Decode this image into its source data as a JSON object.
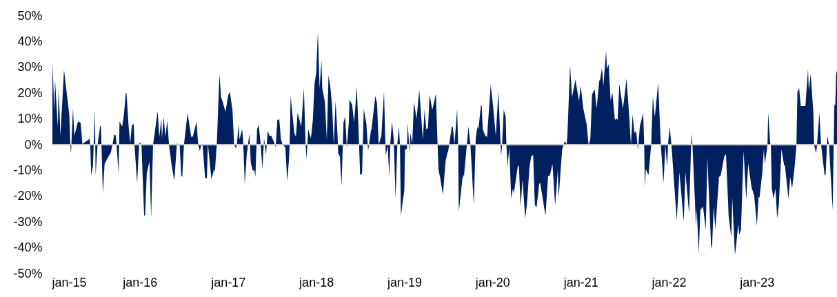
{
  "chart_data": {
    "type": "area",
    "x": [
      "2015-01-04",
      "2015-01-12",
      "2015-01-15",
      "2015-01-26",
      "2015-01-30",
      "2015-02-06",
      "2015-02-21",
      "2015-03-15",
      "2015-03-19",
      "2015-03-22",
      "2015-03-30",
      "2015-04-05",
      "2015-04-20",
      "2015-05-01",
      "2015-05-08",
      "2015-06-03",
      "2015-06-07",
      "2015-06-10",
      "2015-06-14",
      "2015-06-21",
      "2015-06-29",
      "2015-07-02",
      "2015-07-10",
      "2015-07-21",
      "2015-07-24",
      "2015-08-01",
      "2015-08-08",
      "2015-08-19",
      "2015-09-03",
      "2015-09-10",
      "2015-09-17",
      "2015-09-24",
      "2015-10-05",
      "2015-10-09",
      "2015-10-20",
      "2015-10-27",
      "2015-11-04",
      "2015-11-07",
      "2015-11-15",
      "2015-11-22",
      "2015-11-29",
      "2015-12-07",
      "2015-12-10",
      "2015-12-21",
      "2015-12-29",
      "2016-01-01",
      "2016-01-08",
      "2016-01-19",
      "2016-01-23",
      "2016-01-30",
      "2016-02-10",
      "2016-02-17",
      "2016-02-25",
      "2016-03-15",
      "2016-03-22",
      "2016-03-30",
      "2016-04-02",
      "2016-04-09",
      "2016-04-16",
      "2016-04-24",
      "2016-05-01",
      "2016-05-12",
      "2016-05-23",
      "2016-06-03",
      "2016-06-14",
      "2016-06-21",
      "2016-06-25",
      "2016-07-02",
      "2016-07-17",
      "2016-08-01",
      "2016-08-08",
      "2016-08-23",
      "2016-08-30",
      "2016-09-06",
      "2016-09-13",
      "2016-09-17",
      "2016-09-28",
      "2016-10-05",
      "2016-10-09",
      "2016-10-24",
      "2016-11-04",
      "2016-11-07",
      "2016-11-15",
      "2016-11-26",
      "2016-12-03",
      "2016-12-10",
      "2016-12-21",
      "2017-01-01",
      "2017-01-08",
      "2017-01-19",
      "2017-01-26",
      "2017-02-03",
      "2017-02-06",
      "2017-02-14",
      "2017-02-17",
      "2017-02-28",
      "2017-03-04",
      "2017-03-11",
      "2017-03-19",
      "2017-03-30",
      "2017-04-05",
      "2017-04-13",
      "2017-04-20",
      "2017-04-24",
      "2017-05-01",
      "2017-05-08",
      "2017-05-16",
      "2017-05-23",
      "2017-05-30",
      "2017-06-07",
      "2017-06-14",
      "2017-06-21",
      "2017-06-29",
      "2017-07-10",
      "2017-07-17",
      "2017-07-24",
      "2017-08-01",
      "2017-08-08",
      "2017-08-15",
      "2017-08-26",
      "2017-09-03",
      "2017-09-10",
      "2017-09-13",
      "2017-09-17",
      "2017-10-02",
      "2017-10-09",
      "2017-10-16",
      "2017-10-31",
      "2017-11-11",
      "2017-11-18",
      "2017-11-22",
      "2017-11-29",
      "2017-12-10",
      "2017-12-18",
      "2017-12-25",
      "2018-01-01",
      "2018-01-08",
      "2018-01-15",
      "2018-01-23",
      "2018-01-26",
      "2018-02-06",
      "2018-02-14",
      "2018-02-21",
      "2018-02-28",
      "2018-03-08",
      "2018-03-15",
      "2018-03-22",
      "2018-03-30",
      "2018-04-02",
      "2018-04-09",
      "2018-04-16",
      "2018-04-24",
      "2018-05-01",
      "2018-05-08",
      "2018-05-16",
      "2018-05-19",
      "2018-05-30",
      "2018-06-07",
      "2018-06-10",
      "2018-06-18",
      "2018-06-25",
      "2018-07-02",
      "2018-07-10",
      "2018-07-13",
      "2018-07-17",
      "2018-07-28",
      "2018-08-04",
      "2018-08-15",
      "2018-08-19",
      "2018-09-03",
      "2018-09-10",
      "2018-09-17",
      "2018-09-28",
      "2018-10-09",
      "2018-10-16",
      "2018-10-24",
      "2018-10-31",
      "2018-11-04",
      "2018-11-11",
      "2018-11-18",
      "2018-11-26",
      "2018-12-03",
      "2018-12-10",
      "2018-12-14",
      "2018-12-18",
      "2018-12-25",
      "2019-01-01",
      "2019-01-04",
      "2019-01-12",
      "2019-01-15",
      "2019-01-23",
      "2019-01-26",
      "2019-02-03",
      "2019-02-10",
      "2019-02-21",
      "2019-03-04",
      "2019-03-19",
      "2019-03-26",
      "2019-04-02",
      "2019-04-09",
      "2019-04-16",
      "2019-04-27",
      "2019-05-12",
      "2019-05-19",
      "2019-05-23",
      "2019-05-30",
      "2019-06-10",
      "2019-06-21",
      "2019-06-29",
      "2019-07-02",
      "2019-07-17",
      "2019-07-21",
      "2019-07-28",
      "2019-08-08",
      "2019-08-12",
      "2019-08-15",
      "2019-08-30",
      "2019-09-06",
      "2019-09-24",
      "2019-10-02",
      "2019-10-16",
      "2019-10-24",
      "2019-10-31",
      "2019-11-04",
      "2019-11-15",
      "2019-11-18",
      "2019-11-22",
      "2019-12-03",
      "2019-12-10",
      "2019-12-25",
      "2020-01-04",
      "2020-01-15",
      "2020-01-26",
      "2020-02-06",
      "2020-02-10",
      "2020-02-17",
      "2020-02-25",
      "2020-02-28",
      "2020-03-04",
      "2020-03-11",
      "2020-03-19",
      "2020-03-26",
      "2020-03-30",
      "2020-04-16",
      "2020-04-20",
      "2020-04-27",
      "2020-05-05",
      "2020-05-16",
      "2020-05-23",
      "2020-06-03",
      "2020-06-10",
      "2020-06-18",
      "2020-06-25",
      "2020-07-02",
      "2020-07-13",
      "2020-07-17",
      "2020-08-08",
      "2020-08-19",
      "2020-08-26",
      "2020-09-06",
      "2020-09-17",
      "2020-09-28",
      "2020-10-02",
      "2020-10-09",
      "2020-10-16",
      "2020-10-27",
      "2020-11-04",
      "2020-11-07",
      "2020-11-18",
      "2020-11-26",
      "2020-12-10",
      "2020-12-25",
      "2021-01-01",
      "2021-01-12",
      "2021-01-26",
      "2021-02-03",
      "2021-02-10",
      "2021-02-17",
      "2021-02-28",
      "2021-03-08",
      "2021-03-19",
      "2021-03-22",
      "2021-03-30",
      "2021-04-05",
      "2021-04-16",
      "2021-04-20",
      "2021-04-27",
      "2021-05-05",
      "2021-05-12",
      "2021-05-23",
      "2021-05-27",
      "2021-06-03",
      "2021-06-10",
      "2021-06-25",
      "2021-07-10",
      "2021-07-21",
      "2021-07-28",
      "2021-08-04",
      "2021-08-12",
      "2021-08-19",
      "2021-08-26",
      "2021-09-03",
      "2021-09-17",
      "2021-09-21",
      "2021-09-24",
      "2021-09-28",
      "2021-10-09",
      "2021-10-20",
      "2021-10-27",
      "2021-11-04",
      "2021-11-18",
      "2021-11-29",
      "2021-12-10",
      "2021-12-18",
      "2021-12-25",
      "2021-12-29",
      "2022-01-04",
      "2022-01-12",
      "2022-02-03",
      "2022-02-14",
      "2022-03-04",
      "2022-03-11",
      "2022-03-26",
      "2022-04-05",
      "2022-04-09",
      "2022-04-24",
      "2022-04-27",
      "2022-05-05",
      "2022-05-12",
      "2022-05-23",
      "2022-06-03",
      "2022-06-10",
      "2022-06-25",
      "2022-06-29",
      "2022-07-06",
      "2022-07-13",
      "2022-07-28",
      "2022-08-04",
      "2022-08-19",
      "2022-08-26",
      "2022-09-06",
      "2022-09-17",
      "2022-09-21",
      "2022-10-02",
      "2022-10-05",
      "2022-10-16",
      "2022-10-20",
      "2022-10-27",
      "2022-11-07",
      "2022-11-18",
      "2022-11-26",
      "2022-12-10",
      "2022-12-21",
      "2023-01-01",
      "2023-01-08",
      "2023-01-12",
      "2023-01-23",
      "2023-01-30",
      "2023-02-03",
      "2023-02-14",
      "2023-02-17",
      "2023-02-25",
      "2023-02-28",
      "2023-03-04",
      "2023-03-11",
      "2023-03-19",
      "2023-03-26",
      "2023-04-02",
      "2023-04-13",
      "2023-04-24",
      "2023-04-27",
      "2023-05-12",
      "2023-05-19",
      "2023-05-27",
      "2023-06-07",
      "2023-06-14",
      "2023-06-18",
      "2023-06-25",
      "2023-07-02",
      "2023-07-21",
      "2023-08-01",
      "2023-08-04",
      "2023-08-12",
      "2023-08-23",
      "2023-08-26",
      "2023-09-03",
      "2023-09-06",
      "2023-09-17",
      "2023-09-24",
      "2023-10-09",
      "2023-10-13",
      "2023-10-20",
      "2023-10-27",
      "2023-11-11",
      "2023-11-18",
      "2023-11-22",
      "2023-11-26",
      "2023-11-29"
    ],
    "series": [
      {
        "color": "#002060",
        "values": [
          32,
          13,
          25,
          7,
          22,
          3.5,
          29,
          11.5,
          0,
          -3.5,
          14,
          3.5,
          9,
          8.5,
          0.3,
          2,
          2.5,
          -1,
          -12,
          -8,
          13.5,
          -12,
          0,
          7.5,
          7,
          -19,
          -7.5,
          -5.5,
          -3,
          0,
          4,
          3.5,
          -11,
          9,
          7,
          11.5,
          20,
          20,
          8,
          0.5,
          7.5,
          8,
          0,
          -15,
          -0.5,
          1,
          0,
          -27.5,
          -27.5,
          -11,
          -6.5,
          -28.5,
          0,
          13,
          3,
          10,
          2.5,
          10.8,
          3,
          9.4,
          0,
          -8,
          -14,
          0.5,
          0,
          -12,
          -12.5,
          0,
          12.3,
          3,
          3.2,
          9,
          0,
          -2.5,
          0.5,
          0,
          -13,
          -13,
          0.5,
          -13.5,
          -9.5,
          -10.5,
          0,
          27.5,
          18.3,
          16.5,
          12.8,
          19,
          20.6,
          13.5,
          0,
          -1.5,
          0,
          8,
          2,
          6,
          2,
          -15.5,
          -4,
          4.3,
          -7,
          -10,
          -10,
          -12.5,
          6,
          7.7,
          0,
          -9.5,
          2.5,
          -4,
          5.5,
          3.5,
          3.5,
          1,
          -1,
          9.6,
          9.8,
          2,
          0,
          -1,
          -14.3,
          -6,
          0,
          19,
          4.7,
          3,
          12.4,
          7,
          22,
          0,
          -5.5,
          6,
          2.5,
          9.5,
          23.5,
          28,
          44,
          22,
          32.6,
          22,
          16.5,
          2,
          27,
          23,
          15,
          0,
          17,
          4.5,
          -3.3,
          -4.5,
          -16,
          8.5,
          11,
          -1.5,
          8.5,
          17.5,
          15.5,
          8.7,
          12,
          22.7,
          7,
          -11.7,
          -11.3,
          0,
          14,
          8,
          -2.5,
          5,
          6.5,
          19,
          16,
          0,
          3.5,
          20.6,
          -4.3,
          -0.5,
          -12.6,
          0.5,
          9,
          2.5,
          -21,
          0,
          7,
          0,
          -27.6,
          -22.3,
          -18,
          -2,
          -1.5,
          8.5,
          -3,
          4.5,
          0.5,
          16.5,
          10,
          21.4,
          2,
          13.5,
          6,
          6.5,
          19.5,
          13.5,
          19.7,
          0,
          -9.8,
          -13,
          -19.5,
          -6.5,
          -3,
          -2.5,
          7,
          7,
          0,
          14,
          0,
          -26,
          -13,
          -11.5,
          7,
          0,
          -23.3,
          2.5,
          7,
          6,
          15.6,
          15,
          6,
          3.5,
          3,
          23.3,
          15,
          3.5,
          20.5,
          -4.5,
          -0.5,
          13.5,
          11,
          0,
          -8.5,
          -1,
          -21,
          -17,
          -19,
          -8,
          -8.5,
          -24,
          -13.5,
          -28.6,
          -23.3,
          -8.5,
          -4.5,
          -4,
          -23.3,
          -24.3,
          -15.3,
          -14.7,
          -27.6,
          -12,
          -12,
          -7.5,
          -23.6,
          -9.8,
          -20.6,
          -11,
          -2,
          1.5,
          0,
          4,
          30.8,
          18.3,
          25.3,
          17,
          22.8,
          14,
          7.7,
          -0.5,
          2.5,
          19.5,
          21.5,
          14,
          25,
          25,
          29.8,
          22.8,
          36.4,
          29.5,
          31.2,
          17,
          20.3,
          9.4,
          10.2,
          9.6,
          23.6,
          14,
          25.7,
          11,
          0,
          11.7,
          4.5,
          5.3,
          -2,
          7,
          12.3,
          0,
          -16.6,
          -9.4,
          -11.8,
          0,
          18.7,
          10.6,
          24,
          0,
          -15,
          -0.2,
          -8.7,
          0,
          7,
          0,
          -29.4,
          -10.7,
          -29.8,
          -10.7,
          -26.7,
          4.3,
          0,
          -32,
          -25,
          -42.3,
          -25.3,
          -24,
          -33,
          -5,
          -38.8,
          -40.5,
          -24,
          -33,
          -12.5,
          -12,
          -4.5,
          -3.7,
          -27.6,
          -36,
          -20.5,
          -42.6,
          -41,
          -30.7,
          -35,
          -33,
          -2.4,
          -21.5,
          -7.2,
          -16.6,
          -19.8,
          -31.5,
          -20.2,
          -20.6,
          -11.2,
          -1.8,
          -7.6,
          0,
          12.5,
          0.7,
          0,
          -17,
          -21,
          -17,
          -28.6,
          -23.3,
          -1.8,
          -8,
          -8,
          -21,
          -12.5,
          -17,
          -8,
          0,
          20.4,
          22,
          15,
          15,
          29.4,
          21,
          27.5,
          12.5,
          0,
          -3.3,
          -1.5,
          12.5,
          0,
          -12,
          -11.5,
          3.5,
          0,
          -25.4,
          15.5,
          15.5,
          28.9,
          27.5
        ]
      }
    ],
    "xlim": [
      "2015-01-01",
      "2023-11-29"
    ],
    "xticks": [
      {
        "value": "2015-01-01",
        "label": "jan-15"
      },
      {
        "value": "2016-01-01",
        "label": "jan-16"
      },
      {
        "value": "2017-01-01",
        "label": "jan-17"
      },
      {
        "value": "2018-01-01",
        "label": "jan-18"
      },
      {
        "value": "2019-01-01",
        "label": "jan-19"
      },
      {
        "value": "2020-01-01",
        "label": "jan-20"
      },
      {
        "value": "2021-01-01",
        "label": "jan-21"
      },
      {
        "value": "2022-01-01",
        "label": "jan-22"
      },
      {
        "value": "2023-01-01",
        "label": "jan-23"
      }
    ],
    "ylim": [
      -50,
      50
    ],
    "yticks": [
      {
        "value": -50,
        "label": "-50%"
      },
      {
        "value": -40,
        "label": "-40%"
      },
      {
        "value": -30,
        "label": "-30%"
      },
      {
        "value": -20,
        "label": "-20%"
      },
      {
        "value": -10,
        "label": "-10%"
      },
      {
        "value": 0,
        "label": "0%"
      },
      {
        "value": 10,
        "label": "10%"
      },
      {
        "value": 20,
        "label": "20%"
      },
      {
        "value": 30,
        "label": "30%"
      },
      {
        "value": 40,
        "label": "40%"
      },
      {
        "value": 50,
        "label": "50%"
      }
    ],
    "ref_lines": [
      {
        "axis": "y",
        "value": 0,
        "color": "#c8c8c8"
      }
    ],
    "grid": false
  }
}
